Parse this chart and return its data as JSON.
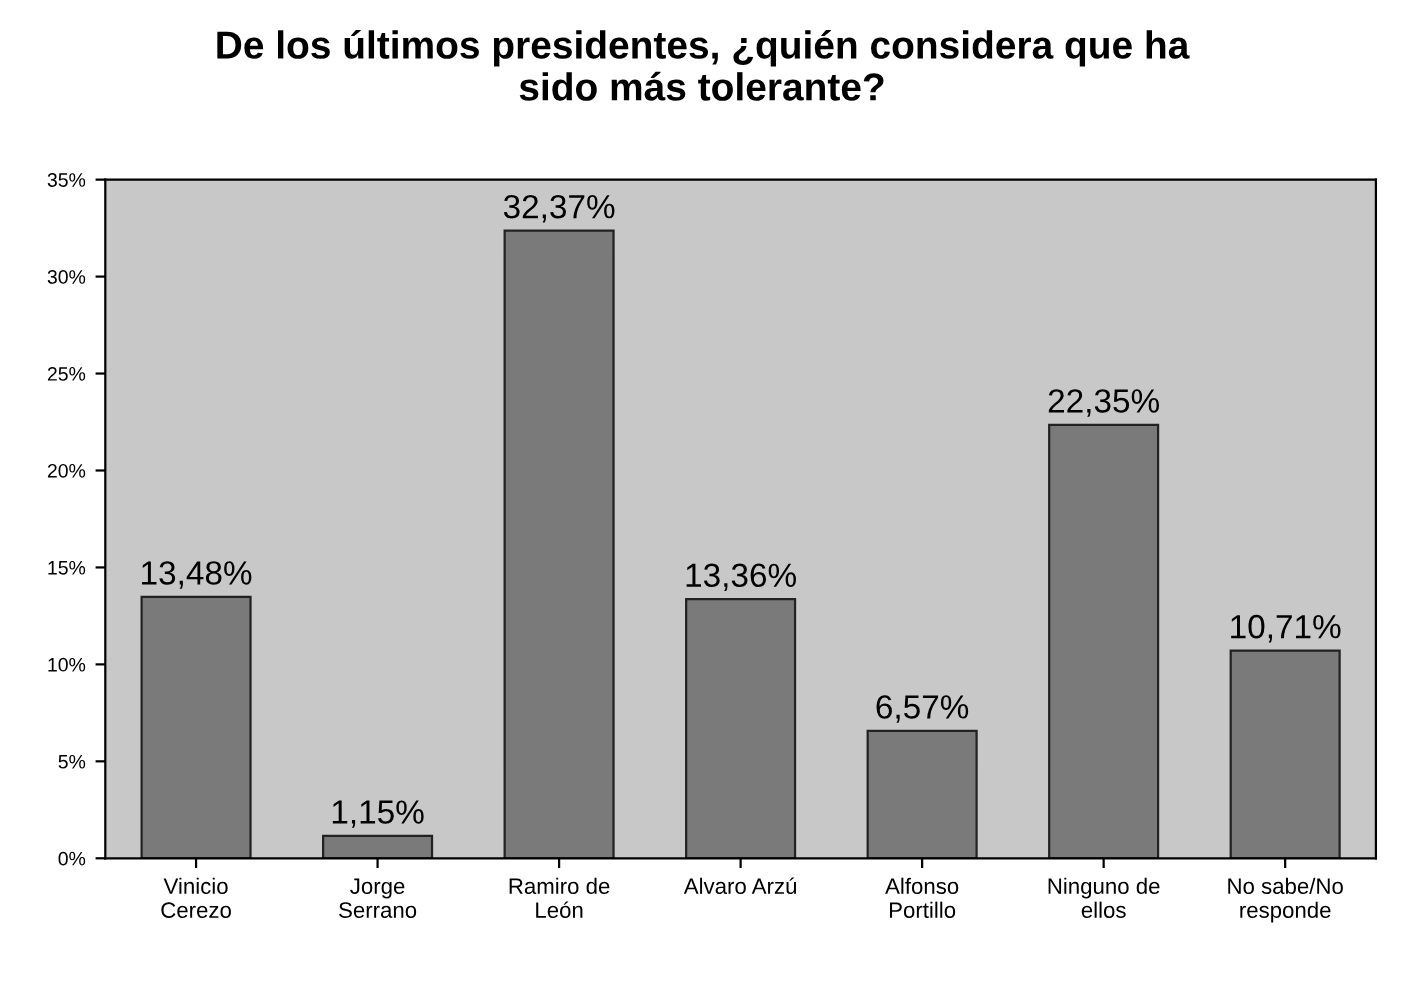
{
  "chart_data": {
    "type": "bar",
    "title": "De los últimos presidentes, ¿quién considera que ha\nsido más tolerante?",
    "categories": [
      "Vinicio\nCerezo",
      "Jorge\nSerrano",
      "Ramiro de\nLeón",
      "Alvaro Arzú",
      "Alfonso\nPortillo",
      "Ninguno de\nellos",
      "No sabe/No\nresponde"
    ],
    "values": [
      13.48,
      1.15,
      32.37,
      13.36,
      6.57,
      22.35,
      10.71
    ],
    "value_labels": [
      "13,48%",
      "1,15%",
      "32,37%",
      "13,36%",
      "6,57%",
      "22,35%",
      "10,71%"
    ],
    "color": "#7a7a7a",
    "ylim": [
      0,
      35
    ],
    "yticks": [
      {
        "value": 0,
        "label": "0%"
      },
      {
        "value": 5,
        "label": "5%"
      },
      {
        "value": 10,
        "label": "10%"
      },
      {
        "value": 15,
        "label": "15%"
      },
      {
        "value": 20,
        "label": "20%"
      },
      {
        "value": 25,
        "label": "25%"
      },
      {
        "value": 30,
        "label": "30%"
      },
      {
        "value": 35,
        "label": "35%"
      }
    ],
    "grid": false
  }
}
